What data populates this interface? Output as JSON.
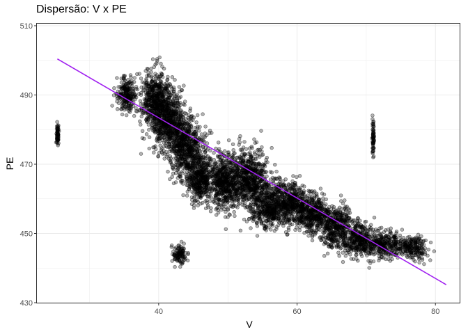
{
  "chart_data": {
    "type": "scatter",
    "title": "Dispersão: V x PE",
    "xlabel": "V",
    "ylabel": "PE",
    "xlim": [
      22.3,
      83.6
    ],
    "ylim": [
      429.8,
      510.8
    ],
    "x_ticks": [
      40,
      60,
      80
    ],
    "y_ticks": [
      430,
      450,
      470,
      490,
      510
    ],
    "grid": true,
    "point_color": "#000000",
    "point_alpha": 0.3,
    "trend_line": {
      "color": "#a020f0",
      "x": [
        25.36,
        81.56
      ],
      "y": [
        500.4,
        435.2
      ]
    },
    "clusters": [
      {
        "x": 25.4,
        "y": 478,
        "sx": 0.2,
        "sy": 3.5
      },
      {
        "x": 35.5,
        "y": 490,
        "sx": 1.5,
        "sy": 5
      },
      {
        "x": 39.5,
        "y": 488,
        "sx": 2.0,
        "sy": 9
      },
      {
        "x": 41.5,
        "y": 483,
        "sx": 2.2,
        "sy": 9
      },
      {
        "x": 44.0,
        "y": 475,
        "sx": 2.5,
        "sy": 9
      },
      {
        "x": 46.0,
        "y": 466,
        "sx": 2.0,
        "sy": 7
      },
      {
        "x": 49.5,
        "y": 465,
        "sx": 2.5,
        "sy": 8
      },
      {
        "x": 53.0,
        "y": 466,
        "sx": 2.5,
        "sy": 9
      },
      {
        "x": 56.0,
        "y": 458,
        "sx": 2.5,
        "sy": 7
      },
      {
        "x": 59.0,
        "y": 459,
        "sx": 2.0,
        "sy": 6
      },
      {
        "x": 62.0,
        "y": 456,
        "sx": 2.5,
        "sy": 6
      },
      {
        "x": 65.5,
        "y": 452,
        "sx": 2.5,
        "sy": 6
      },
      {
        "x": 69.0,
        "y": 448,
        "sx": 2.5,
        "sy": 5
      },
      {
        "x": 72.5,
        "y": 447,
        "sx": 2.0,
        "sy": 4
      },
      {
        "x": 76.5,
        "y": 446,
        "sx": 2.5,
        "sy": 3
      },
      {
        "x": 71.0,
        "y": 478,
        "sx": 0.15,
        "sy": 6
      },
      {
        "x": 43.0,
        "y": 444,
        "sx": 1.0,
        "sy": 2.5
      }
    ]
  }
}
